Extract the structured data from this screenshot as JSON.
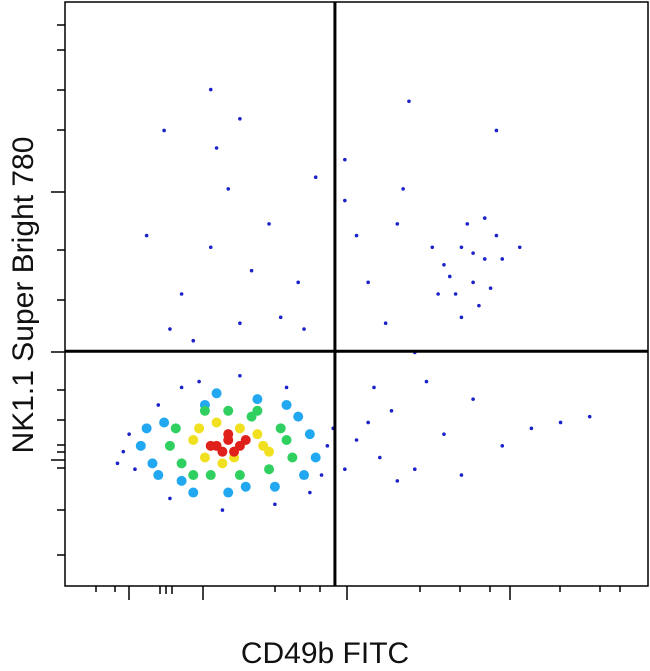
{
  "chart_data": {
    "type": "scatter",
    "x_label": "CD49b FITC",
    "y_label": "NK1.1 Super Bright 780",
    "xlim": [
      0,
      100
    ],
    "ylim": [
      0,
      100
    ],
    "quadrant": {
      "x": 46.3,
      "y": 40.2
    },
    "series": [
      {
        "color": "#1a22c8",
        "x": [
          10,
          11,
          12,
          45,
          46,
          44,
          16,
          20,
          30,
          38,
          18,
          27,
          36,
          42,
          9,
          23,
          20,
          25,
          30,
          35,
          18,
          40,
          28,
          32,
          22,
          37,
          14,
          43,
          26,
          17,
          41,
          65,
          68,
          70,
          72,
          67,
          74,
          69,
          71,
          66,
          73,
          75,
          63,
          70,
          68,
          72,
          64,
          50,
          55,
          58,
          60,
          52,
          78,
          57,
          48,
          50,
          54,
          52,
          56,
          60,
          65,
          70,
          75,
          80,
          57,
          62,
          48,
          85,
          90,
          68,
          53,
          25,
          30,
          74,
          59,
          48
        ],
        "values": [
          23,
          26,
          20,
          24,
          27,
          19,
          31,
          34,
          36,
          34,
          15,
          13,
          14,
          16,
          21,
          35,
          50,
          58,
          45,
          62,
          44,
          52,
          68,
          54,
          42,
          46,
          60,
          70,
          75,
          78,
          44,
          55,
          58,
          52,
          56,
          50,
          60,
          62,
          48,
          53,
          51,
          56,
          58,
          57,
          46,
          63,
          50,
          60,
          45,
          68,
          40,
          52,
          58,
          62,
          66,
          25,
          22,
          28,
          30,
          20,
          26,
          32,
          24,
          27,
          18,
          35,
          20,
          28,
          29,
          19,
          34,
          85,
          80,
          78,
          83,
          73
        ]
      },
      {
        "color": "#22a8f0",
        "x": [
          13,
          15,
          42,
          43,
          17,
          40,
          20,
          36,
          28,
          31,
          24,
          14,
          41,
          16,
          38,
          26,
          33,
          22
        ],
        "values": [
          24,
          21,
          26,
          22,
          28,
          29,
          18,
          17,
          16,
          17,
          31,
          27,
          19,
          19,
          31,
          33,
          32,
          16
        ]
      },
      {
        "color": "#30d060",
        "x": [
          18,
          20,
          38,
          39,
          25,
          32,
          19,
          37,
          28,
          22,
          35,
          30,
          24,
          33
        ],
        "values": [
          24,
          21,
          25,
          22,
          19,
          29,
          27,
          27,
          30,
          19,
          20,
          19,
          30,
          30
        ]
      },
      {
        "color": "#f0e020",
        "x": [
          22,
          24,
          33,
          35,
          27,
          30,
          23,
          34,
          29,
          26
        ],
        "values": [
          25,
          22,
          26,
          23,
          21,
          27,
          27,
          24,
          22,
          28
        ]
      },
      {
        "color": "#e0201a",
        "x": [
          26,
          28,
          30,
          27,
          29,
          31,
          25,
          28
        ],
        "values": [
          24,
          25,
          24,
          23,
          23,
          25,
          24,
          26
        ]
      }
    ]
  }
}
